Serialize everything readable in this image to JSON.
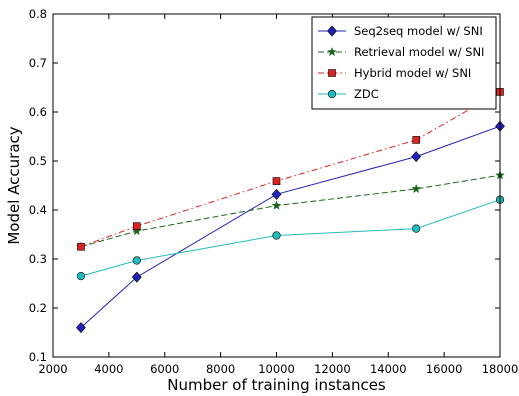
{
  "chart_data": {
    "type": "line",
    "xlabel": "Number of training instances",
    "ylabel": "Model Accuracy",
    "xlim": [
      2000,
      18000
    ],
    "ylim": [
      0.1,
      0.8
    ],
    "xticks": [
      2000,
      4000,
      6000,
      8000,
      10000,
      12000,
      14000,
      16000,
      18000
    ],
    "yticks": [
      0.1,
      0.2,
      0.3,
      0.4,
      0.5,
      0.6,
      0.7,
      0.8
    ],
    "grid": false,
    "legend_position": "top-right",
    "x": [
      3000,
      5000,
      10000,
      15000,
      18000
    ],
    "series": [
      {
        "name": "Seq2seq model w/ SNI",
        "values": [
          0.16,
          0.263,
          0.432,
          0.509,
          0.571
        ],
        "color": "#2222bb",
        "marker": "diamond",
        "line": "solid"
      },
      {
        "name": "Retrieval model w/ SNI",
        "values": [
          0.325,
          0.357,
          0.409,
          0.443,
          0.471
        ],
        "color": "#1a661a",
        "marker": "star",
        "line": "dashed"
      },
      {
        "name": "Hybrid model w/ SNI",
        "values": [
          0.325,
          0.367,
          0.459,
          0.543,
          0.641
        ],
        "color": "#dd2222",
        "marker": "square",
        "line": "dashdot"
      },
      {
        "name": "ZDC",
        "values": [
          0.265,
          0.297,
          0.348,
          0.362,
          0.421
        ],
        "color": "#22bbbb",
        "marker": "circle",
        "line": "solid"
      }
    ]
  }
}
